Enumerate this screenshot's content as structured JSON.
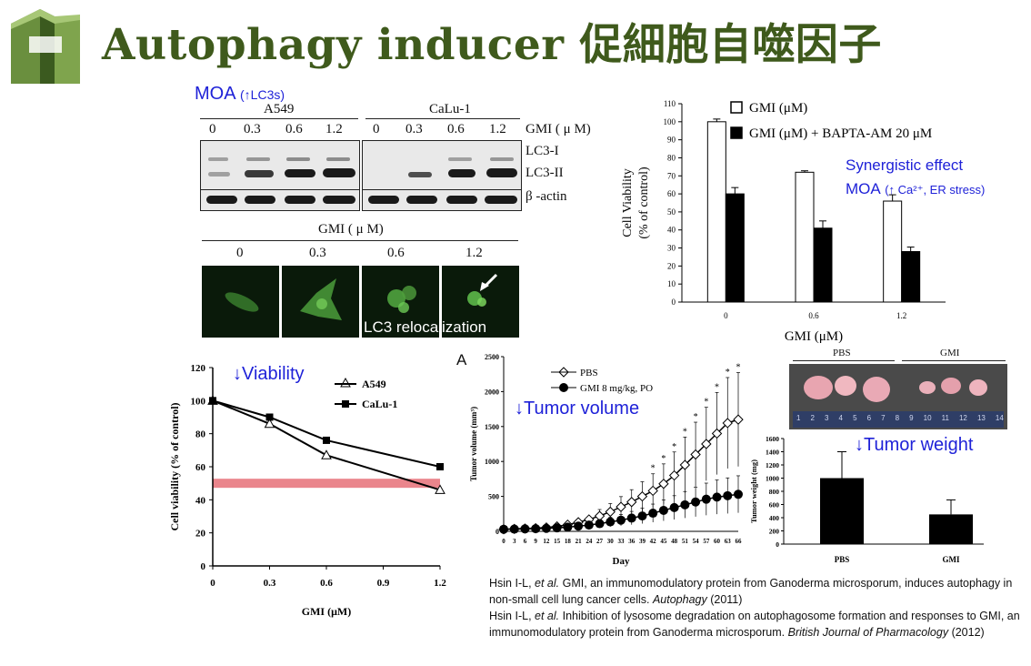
{
  "title": "Autophagy inducer 促細胞自噬因子",
  "annotations": {
    "moa_lc3": "MOA",
    "moa_lc3_detail": "(↑LC3s)",
    "synergistic": "Synergistic effect",
    "moa_ca": "MOA",
    "moa_ca_detail": "(↑ Ca²⁺, ER stress)",
    "viability": "↓Viability",
    "tumor_volume": "↓Tumor volume",
    "tumor_weight": "↓Tumor weight",
    "lc3_relocalization": "LC3 relocalization",
    "panel_a": "A"
  },
  "western_blot": {
    "cell_lines": [
      "A549",
      "CaLu-1"
    ],
    "dose_label": "GMI ( μ M)",
    "doses": [
      "0",
      "0.3",
      "0.6",
      "1.2",
      "0",
      "0.3",
      "0.6",
      "1.2"
    ],
    "bands": [
      "LC3-I",
      "LC3-II",
      "β -actin"
    ]
  },
  "microscopy": {
    "dose_label": "GMI ( μ M)",
    "doses": [
      "0",
      "0.3",
      "0.6",
      "1.2"
    ]
  },
  "photo": {
    "groups": [
      "PBS",
      "GMI"
    ],
    "ruler_numbers": [
      "1",
      "2",
      "3",
      "4",
      "5",
      "6",
      "7",
      "8",
      "9",
      "10",
      "11",
      "12",
      "13",
      "14"
    ]
  },
  "chart_data": [
    {
      "type": "bar",
      "categories": [
        "0",
        "0.6",
        "1.2"
      ],
      "series": [
        {
          "name": "GMI (μM)",
          "values": [
            100,
            72,
            56
          ],
          "errors": [
            1.5,
            0.8,
            3.5
          ],
          "color": "#ffffff"
        },
        {
          "name": "GMI (μM) + BAPTA-AM 20 μM",
          "values": [
            60,
            41,
            28
          ],
          "errors": [
            3.5,
            4,
            2.5
          ],
          "color": "#000000"
        }
      ],
      "xlabel": "GMI (μM)",
      "ylabel": "Cell Viability (% of control)",
      "ylim": [
        0,
        110
      ],
      "yticks": [
        "0",
        "10",
        "20",
        "30",
        "40",
        "50",
        "60",
        "70",
        "80",
        "90",
        "100",
        "110"
      ],
      "legend": "top-right"
    },
    {
      "type": "line",
      "x": [
        0,
        0.3,
        0.6,
        1.2
      ],
      "series": [
        {
          "name": "A549",
          "values": [
            100,
            86,
            67,
            46
          ],
          "marker": "triangle-open"
        },
        {
          "name": "CaLu-1",
          "values": [
            100,
            90,
            76,
            60
          ],
          "marker": "square-filled"
        }
      ],
      "highlight_y": 50,
      "xlabel": "GMI (μM)",
      "ylabel": "Cell viability (% of control)",
      "ylim": [
        0,
        120
      ],
      "xlim": [
        0,
        1.2
      ],
      "xticks": [
        "0",
        "0.3",
        "0.6",
        "0.9",
        "1.2"
      ],
      "yticks": [
        "0",
        "20",
        "40",
        "60",
        "80",
        "100",
        "120"
      ]
    },
    {
      "type": "line",
      "x": [
        0,
        3,
        6,
        9,
        12,
        15,
        18,
        21,
        24,
        27,
        30,
        33,
        36,
        39,
        42,
        45,
        48,
        51,
        54,
        57,
        60,
        63,
        66
      ],
      "series": [
        {
          "name": "PBS",
          "values": [
            30,
            35,
            40,
            45,
            55,
            70,
            95,
            130,
            170,
            220,
            280,
            350,
            420,
            500,
            580,
            680,
            800,
            950,
            1100,
            1250,
            1400,
            1550,
            1600
          ],
          "marker": "diamond-open"
        },
        {
          "name": "GMI 8 mg/kg, PO",
          "values": [
            30,
            32,
            35,
            38,
            42,
            50,
            60,
            75,
            90,
            110,
            135,
            160,
            190,
            220,
            260,
            300,
            340,
            380,
            420,
            460,
            490,
            510,
            530
          ],
          "marker": "circle-filled"
        }
      ],
      "significance_from_x": 42,
      "xlabel": "Day",
      "ylabel": "Tumor volume (mm³)",
      "ylim": [
        0,
        2500
      ],
      "xticks": [
        "0",
        "3",
        "6",
        "9",
        "12",
        "15",
        "18",
        "21",
        "24",
        "27",
        "30",
        "33",
        "36",
        "39",
        "42",
        "45",
        "48",
        "51",
        "54",
        "57",
        "60",
        "63",
        "66"
      ],
      "yticks": [
        "0",
        "500",
        "1000",
        "1500",
        "2000",
        "2500"
      ]
    },
    {
      "type": "bar",
      "categories": [
        "PBS",
        "GMI"
      ],
      "values": [
        1000,
        450
      ],
      "errors": [
        400,
        220
      ],
      "ylabel": "Tumor weight (mg)",
      "ylim": [
        0,
        1600
      ],
      "yticks": [
        "0",
        "200",
        "400",
        "600",
        "800",
        "1000",
        "1200",
        "1400",
        "1600"
      ]
    }
  ],
  "references": [
    {
      "pre": "Hsin I-L, ",
      "etal": "et al.",
      "body": " GMI, an immunomodulatory protein from Ganoderma microsporum, induces autophagy in non-small cell lung cancer cells. ",
      "journal": "Autophagy",
      "year": " (2011)"
    },
    {
      "pre": "Hsin I-L, ",
      "etal": "et al.",
      "body": " Inhibition of lysosome degradation on autophagosome formation and responses to GMI, an immunomodulatory protein from Ganoderma microsporum. ",
      "journal": "British Journal of Pharmacology",
      "year": " (2012)"
    }
  ]
}
